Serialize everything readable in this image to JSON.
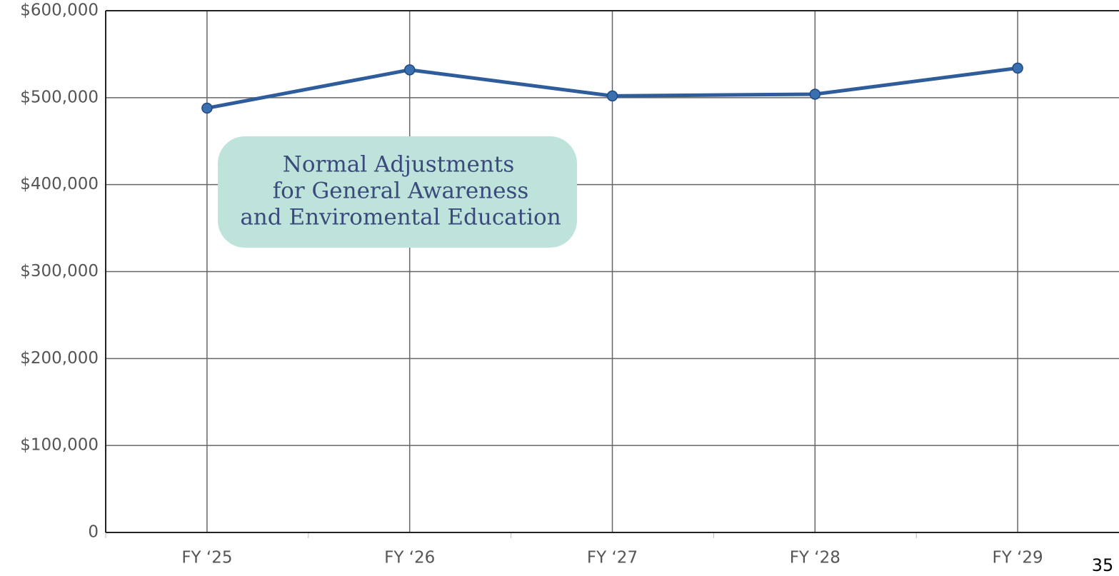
{
  "chart_data": {
    "type": "line",
    "categories": [
      "FY ‘25",
      "FY ‘26",
      "FY ‘27",
      "FY ‘28",
      "FY ‘29"
    ],
    "series": [
      {
        "name": null,
        "color": "#2f5d9b",
        "values": [
          488000,
          532000,
          502000,
          504000,
          534000
        ]
      }
    ],
    "ylim": [
      0,
      600000
    ],
    "yticks": [
      0,
      {
        "value": 100000,
        "label": "$100,000"
      },
      {
        "value": 200000,
        "label": "$200,000"
      },
      {
        "value": 300000,
        "label": "$300,000"
      },
      {
        "value": 400000,
        "label": "$400,000"
      },
      {
        "value": 500000,
        "label": "$500,000"
      },
      {
        "value": 600000,
        "label": "$600,000"
      }
    ],
    "grid": true,
    "annotation": {
      "lines": [
        "Normal Adjustments",
        "for General Awareness",
        "and Enviromental Education"
      ]
    }
  },
  "page_number": "35"
}
